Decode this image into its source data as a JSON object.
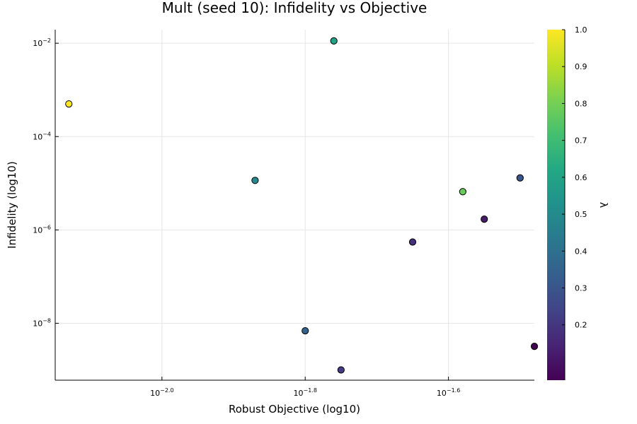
{
  "chart_data": {
    "type": "scatter",
    "title": "Mult (seed 10): Infidelity vs Objective",
    "xlabel": "Robust Objective (log10)",
    "ylabel": "Infidelity (log10)",
    "xscale": "log10",
    "yscale": "log10",
    "xlim": [
      0.007095,
      0.03311
    ],
    "ylim": [
      6.03e-10,
      0.0195
    ],
    "grid": true,
    "xticks": [
      {
        "value": 0.01,
        "base": "10",
        "exp": "−2.0"
      },
      {
        "value": 0.015849,
        "base": "10",
        "exp": "−1.8"
      },
      {
        "value": 0.025119,
        "base": "10",
        "exp": "−1.6"
      }
    ],
    "yticks": [
      {
        "value": 1e-08,
        "base": "10",
        "exp": "−8"
      },
      {
        "value": 1e-06,
        "base": "10",
        "exp": "−6"
      },
      {
        "value": 0.0001,
        "base": "10",
        "exp": "−4"
      },
      {
        "value": 0.01,
        "base": "10",
        "exp": "−2"
      }
    ],
    "points": [
      {
        "x": 0.007413,
        "y": 0.0005,
        "lambda": 1.0
      },
      {
        "x": 0.017378,
        "y": 0.0112,
        "lambda": 0.6
      },
      {
        "x": 0.01349,
        "y": 1.15e-05,
        "lambda": 0.5
      },
      {
        "x": 0.026303,
        "y": 6.6e-06,
        "lambda": 0.78
      },
      {
        "x": 0.031623,
        "y": 1.3e-05,
        "lambda": 0.3
      },
      {
        "x": 0.028184,
        "y": 1.7e-06,
        "lambda": 0.12
      },
      {
        "x": 0.022387,
        "y": 5.5e-07,
        "lambda": 0.18
      },
      {
        "x": 0.015849,
        "y": 6.9e-09,
        "lambda": 0.35
      },
      {
        "x": 0.017783,
        "y": 1e-09,
        "lambda": 0.22
      },
      {
        "x": 0.033113,
        "y": 3.2e-09,
        "lambda": 0.05
      }
    ],
    "colorbar": {
      "label": "λ",
      "range": [
        0.05,
        1.0
      ],
      "ticks": [
        "1.0",
        "0.9",
        "0.8",
        "0.7",
        "0.6",
        "0.5",
        "0.4",
        "0.3",
        "0.2"
      ],
      "tick_values": [
        1.0,
        0.9,
        0.8,
        0.7,
        0.6,
        0.5,
        0.4,
        0.3,
        0.2
      ],
      "colormap": "viridis"
    }
  }
}
